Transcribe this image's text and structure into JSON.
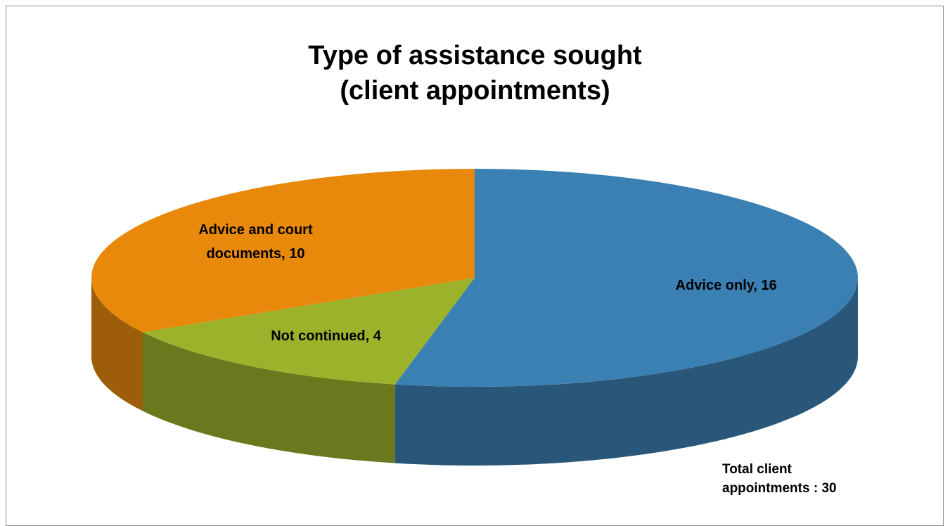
{
  "chart_data": {
    "type": "pie",
    "title": [
      "Type of assistance sought",
      "(client appointments)"
    ],
    "categories": [
      "Advice only",
      "Not continued",
      "Advice and court documents"
    ],
    "values": [
      16,
      4,
      10
    ],
    "value_labels": [
      "Advice only, 16",
      "Not continued, 4",
      "Advice and court documents, 10"
    ],
    "colors": [
      "#3b80b2",
      "#9cb22b",
      "#e8890c"
    ],
    "annotation": "Total client appointments : 30"
  }
}
